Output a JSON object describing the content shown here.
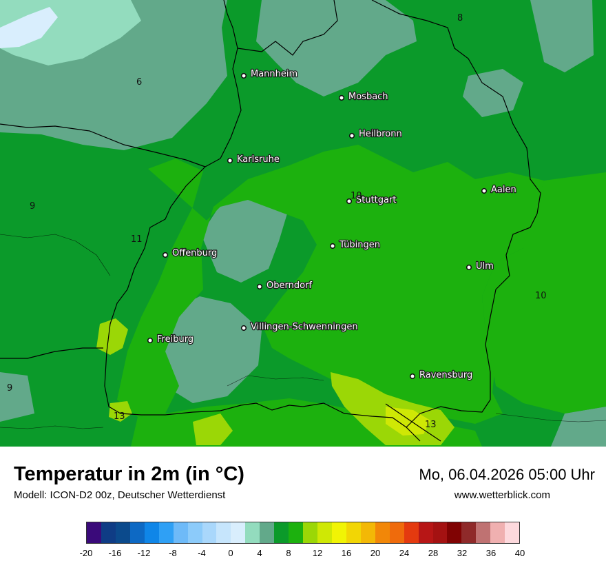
{
  "map": {
    "cities": [
      {
        "name": "Mannheim"
      },
      {
        "name": "Mosbach"
      },
      {
        "name": "Heilbronn"
      },
      {
        "name": "Karlsruhe"
      },
      {
        "name": "Aalen"
      },
      {
        "name": "Stuttgart"
      },
      {
        "name": "Offenburg"
      },
      {
        "name": "Tübingen"
      },
      {
        "name": "Ulm"
      },
      {
        "name": "Oberndorf"
      },
      {
        "name": "Villingen-Schwenningen"
      },
      {
        "name": "Freiburg"
      },
      {
        "name": "Ravensburg"
      }
    ],
    "isolines": [
      "8",
      "6",
      "9",
      "11",
      "10",
      "10",
      "9",
      "13",
      "13"
    ]
  },
  "footer": {
    "title": "Temperatur in 2m (in °C)",
    "subtitle": "Modell: ICON-D2 00z, Deutscher Wetterdienst",
    "datetime": "Mo, 06.04.2026 05:00 Uhr",
    "website": "www.wetterblick.com"
  },
  "legend": {
    "colors": [
      "#3a0a7a",
      "#0f3c85",
      "#0b4a8c",
      "#0d69c4",
      "#0f86e8",
      "#2fa0f5",
      "#6ebaf8",
      "#8ccbfa",
      "#a9d7fb",
      "#c6e5fc",
      "#d9eefd",
      "#93dcbe",
      "#62a98a",
      "#0b9a2a",
      "#1cb10e",
      "#9bd706",
      "#cfe805",
      "#f1f405",
      "#f2d605",
      "#f3b806",
      "#f28708",
      "#ef6b0c",
      "#e43a0f",
      "#b71616",
      "#a41212",
      "#800303",
      "#8f2a2a",
      "#bf7272",
      "#f0b0b0",
      "#fdd9dd"
    ],
    "ticks": [
      "-20",
      "-16",
      "-12",
      "-8",
      "-4",
      "0",
      "4",
      "8",
      "12",
      "16",
      "20",
      "24",
      "28",
      "32",
      "36",
      "40"
    ]
  }
}
